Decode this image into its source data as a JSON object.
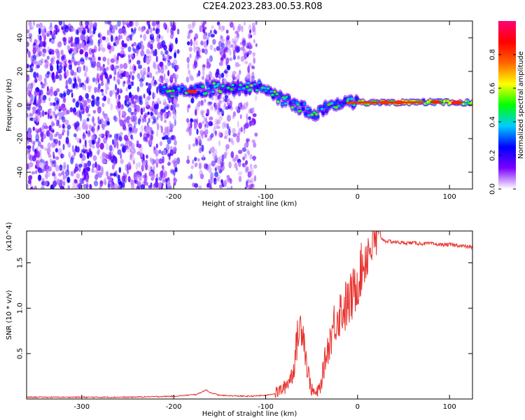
{
  "title": "C2E4.2023.283.00.53.R08",
  "chart_data": [
    {
      "type": "heatmap",
      "xlabel": "Height of straight line (km)",
      "ylabel": "Frequency (Hz)",
      "xlim": [
        -360,
        125
      ],
      "ylim": [
        -50,
        50
      ],
      "xticks": [
        -300,
        -200,
        -100,
        0,
        100
      ],
      "xtick_labels": [
        "-300",
        "-200",
        "-100",
        "0",
        "100"
      ],
      "yticks": [
        -40,
        -20,
        0,
        20,
        40
      ],
      "ytick_labels": [
        "-40",
        "-20",
        "0",
        "20",
        "40"
      ],
      "colorbar": {
        "label": "Normalized spectral amplitude",
        "range": [
          0,
          1
        ],
        "ticks": [
          0,
          0.2,
          0.4,
          0.6,
          0.8
        ],
        "tick_labels": [
          "0.0",
          "0.2",
          "0.4",
          "0.6",
          "0.8"
        ],
        "colormap": [
          "#ffffff",
          "#7a00ff",
          "#0000ff",
          "#00ccff",
          "#00ff00",
          "#ffff00",
          "#ff6600",
          "#ff0000",
          "#ff0077"
        ]
      },
      "features": {
        "noise_regions_km": [
          [
            -360,
            -195
          ],
          [
            -185,
            -110
          ]
        ],
        "ridge": {
          "x": [
            -215,
            -200,
            -180,
            -160,
            -140,
            -120,
            -105,
            -95,
            -85,
            -75,
            -65,
            -55,
            -45,
            -35,
            -25,
            -15,
            0,
            20,
            50,
            80,
            100,
            125
          ],
          "y": [
            8,
            8,
            8,
            10,
            10,
            10,
            11,
            8,
            4,
            2,
            -1,
            -3,
            -5,
            -1,
            0,
            1,
            1.5,
            1.5,
            1.5,
            1.8,
            1.5,
            1.5
          ]
        }
      }
    },
    {
      "type": "line",
      "xlabel": "Height of straight line (km)",
      "ylabel": "SNR (10 * v/v)",
      "y_multiplier": "(x10^4)",
      "xlim": [
        -360,
        125
      ],
      "ylim": [
        0,
        1.85
      ],
      "xticks": [
        -300,
        -200,
        -100,
        0,
        100
      ],
      "xtick_labels": [
        "-300",
        "-200",
        "-100",
        "0",
        "100"
      ],
      "yticks": [
        0.5,
        1.0,
        1.5
      ],
      "ytick_labels": [
        "0.5",
        "1.0",
        "1.5"
      ],
      "series": [
        {
          "color": "#e8332e",
          "x": [
            -360,
            -300,
            -250,
            -200,
            -175,
            -165,
            -160,
            -150,
            -120,
            -100,
            -90,
            -80,
            -75,
            -70,
            -65,
            -60,
            -55,
            -50,
            -45,
            -40,
            -35,
            -30,
            -25,
            -20,
            -15,
            -10,
            -5,
            0,
            5,
            10,
            15,
            20,
            25,
            30,
            40,
            50,
            60,
            70,
            80,
            90,
            100,
            110,
            125
          ],
          "y": [
            0.02,
            0.02,
            0.02,
            0.03,
            0.05,
            0.1,
            0.07,
            0.04,
            0.03,
            0.04,
            0.06,
            0.12,
            0.2,
            0.3,
            0.7,
            0.85,
            0.35,
            0.1,
            0.05,
            0.15,
            0.45,
            0.65,
            0.85,
            0.95,
            1.0,
            1.05,
            1.15,
            1.3,
            1.45,
            1.6,
            1.7,
            1.75,
            1.78,
            1.74,
            1.73,
            1.72,
            1.72,
            1.71,
            1.71,
            1.7,
            1.7,
            1.69,
            1.67
          ]
        }
      ]
    }
  ]
}
